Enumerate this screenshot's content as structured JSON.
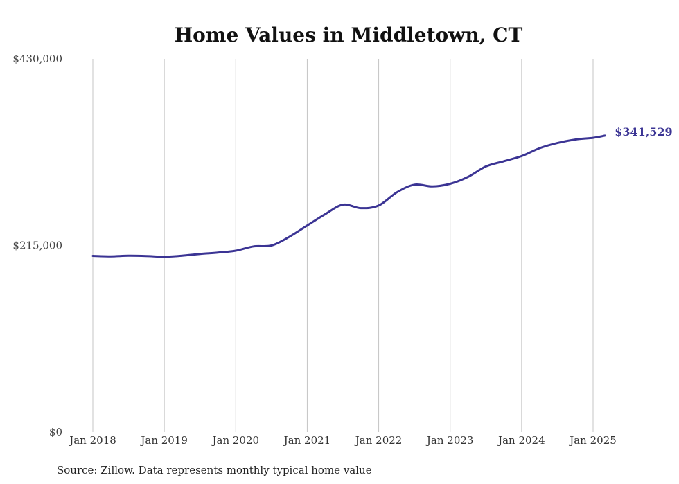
{
  "chart_data": {
    "type": "line",
    "title": "Home Values in Middletown, CT",
    "xlabel": "",
    "ylabel": "",
    "ylim": [
      0,
      430000
    ],
    "y_ticks": [
      "$0",
      "$215,000",
      "$430,000"
    ],
    "y_tick_values": [
      0,
      215000,
      430000
    ],
    "x_ticks": [
      "Jan 2018",
      "Jan 2019",
      "Jan 2020",
      "Jan 2021",
      "Jan 2022",
      "Jan 2023",
      "Jan 2024",
      "Jan 2025"
    ],
    "grid": "vertical",
    "series": [
      {
        "color": "#3b3494",
        "end_label": "$341,529",
        "points": [
          [
            "2018-01",
            203000
          ],
          [
            "2018-04",
            202500
          ],
          [
            "2018-07",
            203200
          ],
          [
            "2018-10",
            202800
          ],
          [
            "2019-01",
            202000
          ],
          [
            "2019-04",
            203200
          ],
          [
            "2019-07",
            205200
          ],
          [
            "2019-10",
            206800
          ],
          [
            "2020-01",
            209000
          ],
          [
            "2020-04",
            214000
          ],
          [
            "2020-07",
            215000
          ],
          [
            "2020-10",
            225000
          ],
          [
            "2021-01",
            238000
          ],
          [
            "2021-04",
            251000
          ],
          [
            "2021-07",
            262000
          ],
          [
            "2021-10",
            258000
          ],
          [
            "2022-01",
            261000
          ],
          [
            "2022-04",
            276000
          ],
          [
            "2022-07",
            285000
          ],
          [
            "2022-10",
            283000
          ],
          [
            "2023-01",
            286000
          ],
          [
            "2023-04",
            294000
          ],
          [
            "2023-07",
            306000
          ],
          [
            "2023-10",
            312000
          ],
          [
            "2024-01",
            318000
          ],
          [
            "2024-04",
            327000
          ],
          [
            "2024-07",
            333000
          ],
          [
            "2024-10",
            337000
          ],
          [
            "2025-01",
            339000
          ],
          [
            "2025-03",
            341529
          ]
        ]
      }
    ]
  },
  "source_note": "Source: Zillow. Data represents monthly typical home value"
}
